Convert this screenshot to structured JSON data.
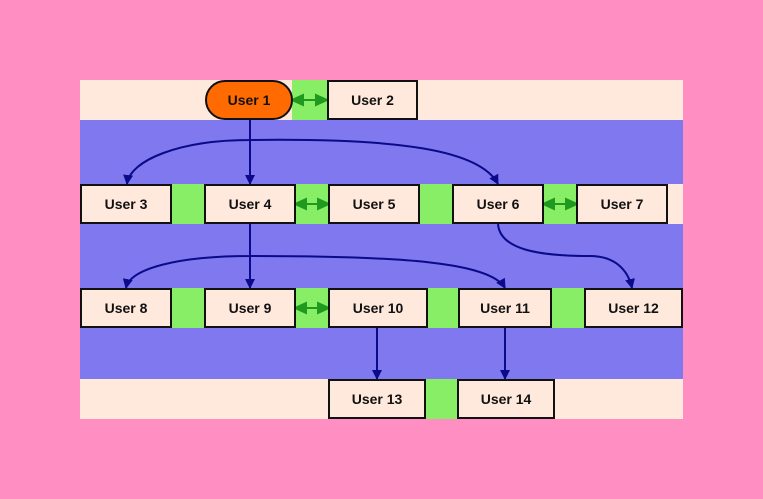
{
  "colors": {
    "page_background": "#ff8ec3",
    "band_light": "#ffe9dc",
    "band_purple": "#7f78ee",
    "connector_green": "#88ee66",
    "link_green": "#1f9a1f",
    "edge_navy": "#0a0a8a",
    "root_fill": "#ff6b00"
  },
  "nodes": {
    "user1": "User 1",
    "user2": "User 2",
    "user3": "User 3",
    "user4": "User 4",
    "user5": "User 5",
    "user6": "User 6",
    "user7": "User 7",
    "user8": "User 8",
    "user9": "User 9",
    "user10": "User 10",
    "user11": "User 11",
    "user12": "User 12",
    "user13": "User 13",
    "user14": "User 14"
  },
  "edges": [
    {
      "from": "User 1",
      "to": "User 3"
    },
    {
      "from": "User 1",
      "to": "User 4"
    },
    {
      "from": "User 1",
      "to": "User 6"
    },
    {
      "from": "User 4",
      "to": "User 8"
    },
    {
      "from": "User 4",
      "to": "User 9"
    },
    {
      "from": "User 4",
      "to": "User 11"
    },
    {
      "from": "User 6",
      "to": "User 12"
    },
    {
      "from": "User 10",
      "to": "User 13"
    },
    {
      "from": "User 11",
      "to": "User 14"
    }
  ],
  "links": [
    {
      "between": [
        "User 1",
        "User 2"
      ]
    },
    {
      "between": [
        "User 4",
        "User 5"
      ]
    },
    {
      "between": [
        "User 6",
        "User 7"
      ]
    },
    {
      "between": [
        "User 9",
        "User 10"
      ]
    }
  ]
}
